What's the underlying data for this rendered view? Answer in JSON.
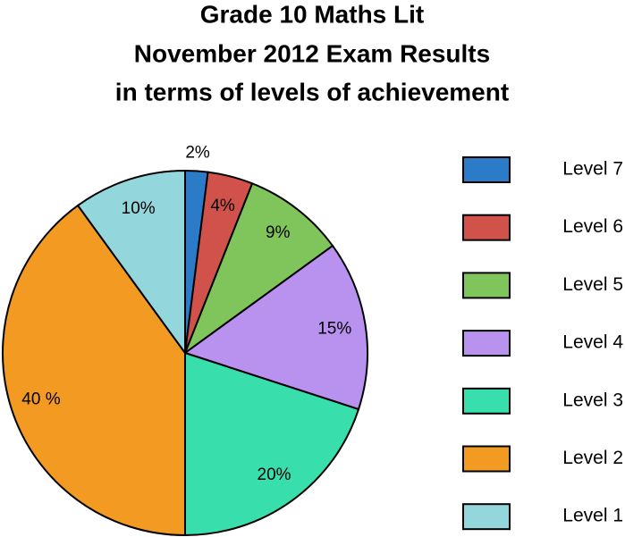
{
  "chart_data": {
    "type": "pie",
    "title": [
      "Grade 10 Maths Lit",
      "November 2012 Exam Results",
      "in terms of levels of achievement"
    ],
    "series": [
      {
        "name": "Level 7",
        "color": "#2b7bc8",
        "values": [
          2
        ],
        "value_labels": [
          "2%"
        ]
      },
      {
        "name": "Level 6",
        "color": "#d0524a",
        "values": [
          4
        ],
        "value_labels": [
          "4%"
        ]
      },
      {
        "name": "Level 5",
        "color": "#80c45c",
        "values": [
          9
        ],
        "value_labels": [
          "9%"
        ]
      },
      {
        "name": "Level 4",
        "color": "#b991ee",
        "values": [
          15
        ],
        "value_labels": [
          "15%"
        ]
      },
      {
        "name": "Level 3",
        "color": "#38dfad",
        "values": [
          20
        ],
        "value_labels": [
          "20%"
        ]
      },
      {
        "name": "Level 2",
        "color": "#f39a22",
        "values": [
          40
        ],
        "value_labels": [
          "40 %"
        ]
      },
      {
        "name": "Level 1",
        "color": "#93d6dc",
        "values": [
          10
        ],
        "value_labels": [
          "10%"
        ]
      }
    ],
    "legend": "right"
  }
}
